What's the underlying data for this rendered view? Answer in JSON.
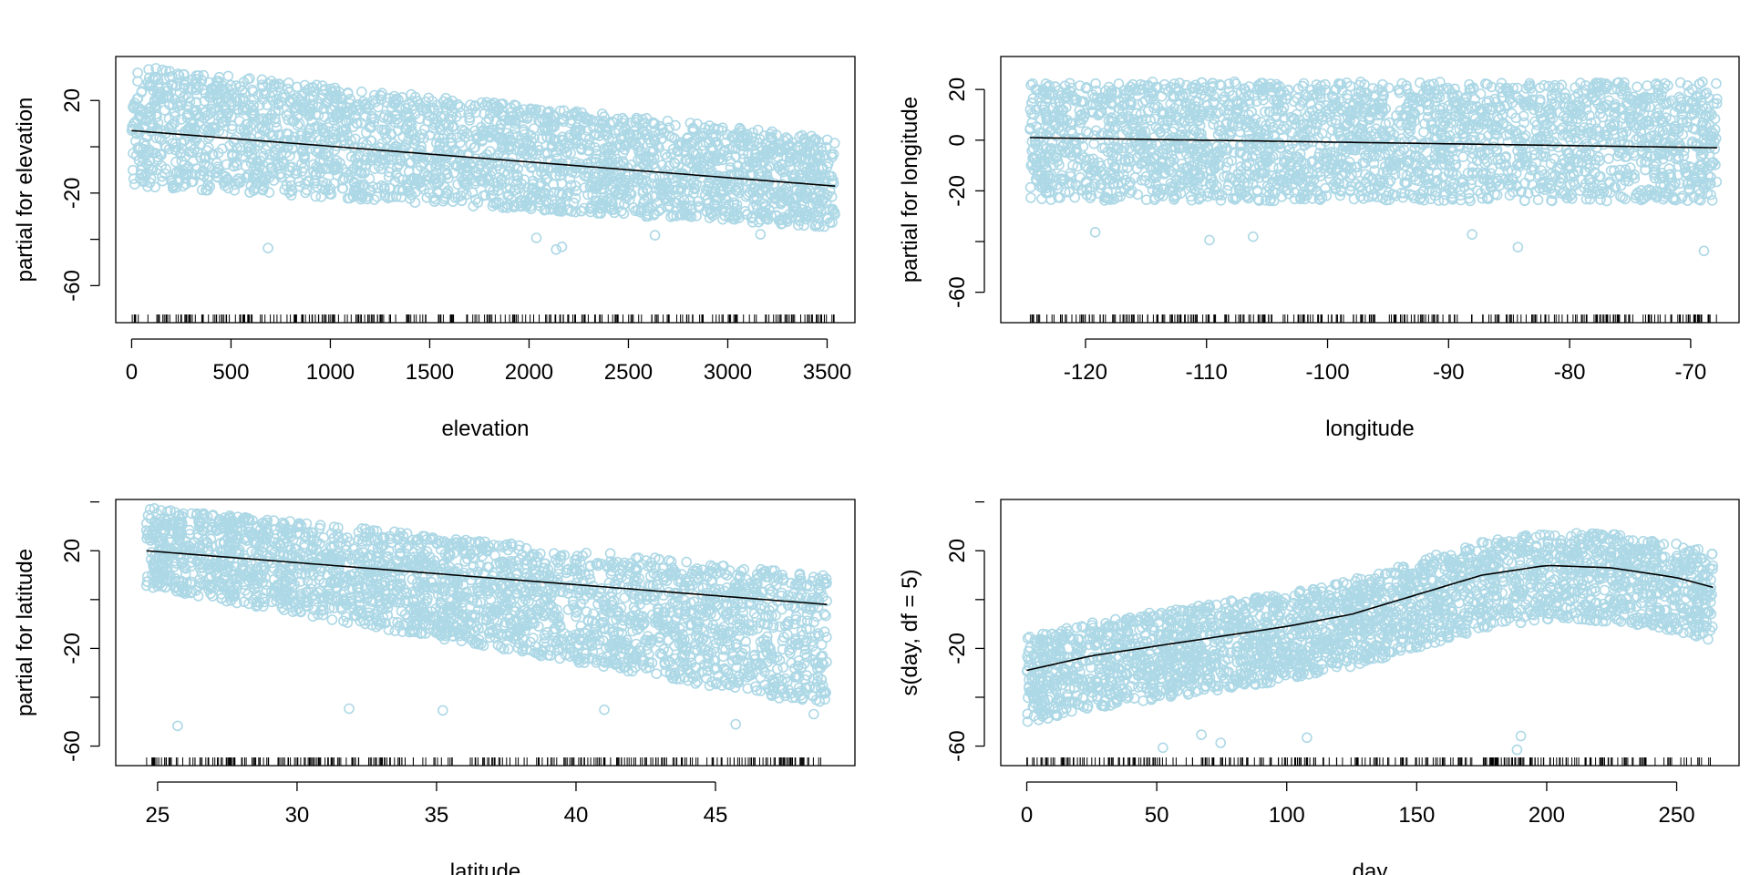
{
  "chart_data": [
    {
      "type": "scatter",
      "xlabel": "elevation",
      "ylabel": "partial for elevation",
      "xticks": [
        0,
        500,
        1000,
        1500,
        2000,
        2500,
        3000,
        3500
      ],
      "yticks": [
        20,
        -20,
        -60
      ],
      "xlim": [
        -80,
        3640
      ],
      "ylim": [
        -76,
        39
      ],
      "data_range": [
        0,
        3540
      ],
      "fit": {
        "shape": "linear",
        "x": [
          0,
          3540
        ],
        "y": [
          7,
          -17
        ]
      },
      "band": {
        "upper_at_start": 35,
        "upper_at_end": 4,
        "lower_at_start": -17,
        "lower_at_end": -35,
        "outlier_low": -45
      },
      "point_color": "#add8e6",
      "line_color": "#000000",
      "grid": false,
      "rug": true
    },
    {
      "type": "scatter",
      "xlabel": "longitude",
      "ylabel": "partial for longitude",
      "xticks": [
        -120,
        -110,
        -100,
        -90,
        -80,
        -70
      ],
      "yticks": [
        20,
        0,
        -20,
        -60
      ],
      "xlim": [
        -127,
        -66
      ],
      "ylim": [
        -72,
        33
      ],
      "data_range": [
        -124.6,
        -67.8
      ],
      "fit": {
        "shape": "linear",
        "x": [
          -124.6,
          -67.8
        ],
        "y": [
          1,
          -3
        ]
      },
      "band": {
        "upper_at_start": 23,
        "upper_at_end": 23,
        "lower_at_start": -24,
        "lower_at_end": -24,
        "outlier_low": -44
      },
      "point_color": "#add8e6",
      "line_color": "#000000",
      "grid": false,
      "rug": true
    },
    {
      "type": "scatter",
      "xlabel": "latitude",
      "ylabel": "partial for latitude",
      "xticks": [
        25,
        30,
        35,
        40,
        45
      ],
      "yticks": [
        20,
        -20,
        -60
      ],
      "xlim": [
        23.5,
        50
      ],
      "ylim": [
        -68,
        41
      ],
      "data_range": [
        24.6,
        49
      ],
      "fit": {
        "shape": "linear",
        "x": [
          24.6,
          49
        ],
        "y": [
          20,
          -2
        ]
      },
      "band": {
        "upper_at_start": 38,
        "upper_at_end": 10,
        "lower_at_start": 5,
        "lower_at_end": -44,
        "outlier_low": -52
      },
      "point_color": "#add8e6",
      "line_color": "#000000",
      "grid": false,
      "rug": true
    },
    {
      "type": "scatter",
      "xlabel": "day",
      "ylabel": "s(day, df = 5)",
      "xticks": [
        0,
        50,
        100,
        150,
        200,
        250
      ],
      "yticks": [
        20,
        -20,
        -60
      ],
      "xlim": [
        -10,
        274
      ],
      "ylim": [
        -68,
        41
      ],
      "data_range": [
        0,
        264
      ],
      "fit": {
        "shape": "smooth",
        "x": [
          0,
          25,
          50,
          75,
          100,
          125,
          150,
          175,
          200,
          225,
          250,
          264
        ],
        "y": [
          -29,
          -23,
          -19,
          -15,
          -11,
          -6,
          2,
          10,
          14,
          13,
          9,
          5
        ]
      },
      "band": {
        "upper_offset": 14,
        "lower_offset": -22,
        "outlier_low": -63
      },
      "point_color": "#add8e6",
      "line_color": "#000000",
      "grid": false,
      "rug": true
    }
  ]
}
